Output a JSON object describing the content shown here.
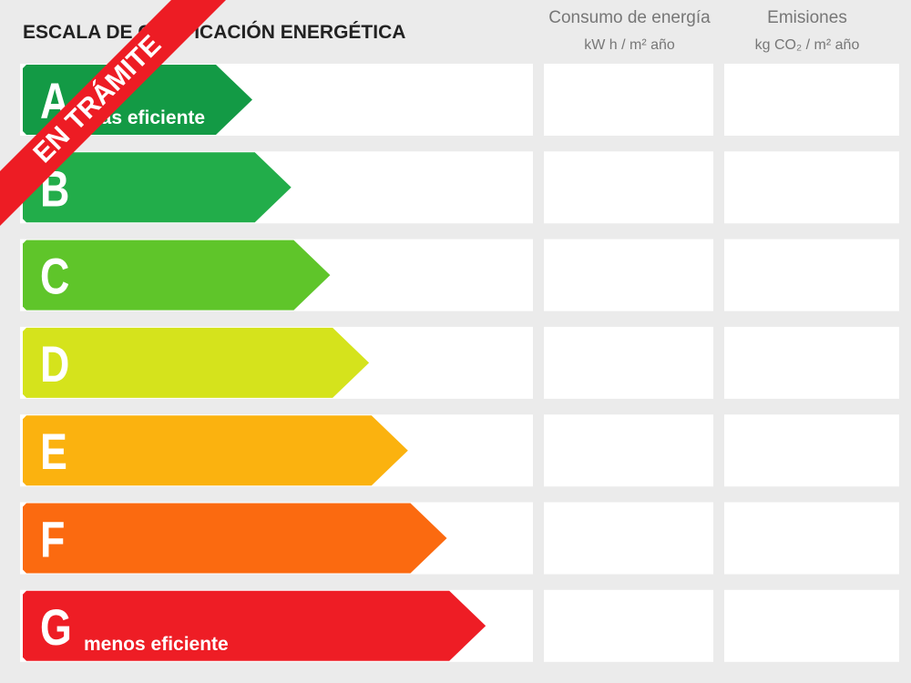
{
  "header": {
    "title": "ESCALA DE CALIFICACIÓN ENERGÉTICA",
    "columns": [
      {
        "title": "Consumo de energía",
        "unit": "kW h / m² año"
      },
      {
        "title": "Emisiones",
        "unit": "kg CO₂ / m² año"
      }
    ]
  },
  "rows": [
    {
      "letter": "A",
      "label": "más eficiente"
    },
    {
      "letter": "B"
    },
    {
      "letter": "C"
    },
    {
      "letter": "D"
    },
    {
      "letter": "E"
    },
    {
      "letter": "F"
    },
    {
      "letter": "G",
      "label": "menos eficiente"
    }
  ],
  "banner": "EN TRÁMITE"
}
